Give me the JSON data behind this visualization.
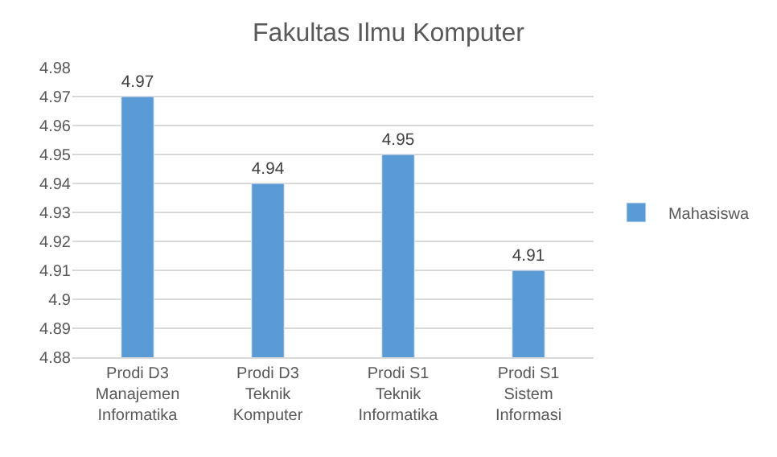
{
  "chart_data": {
    "type": "bar",
    "title": "Fakultas Ilmu Komputer",
    "categories": [
      "Prodi D3 Manajemen Informatika",
      "Prodi D3 Teknik Komputer",
      "Prodi S1 Teknik Informatika",
      "Prodi S1 Sistem Informasi"
    ],
    "series": [
      {
        "name": "Mahasiswa",
        "color": "#5b9bd5",
        "values": [
          4.97,
          4.94,
          4.95,
          4.91
        ]
      }
    ],
    "ylim": [
      4.88,
      4.98
    ],
    "yticks": [
      4.88,
      4.89,
      4.9,
      4.91,
      4.92,
      4.93,
      4.94,
      4.95,
      4.96,
      4.97,
      4.98
    ],
    "grid": "y",
    "legend": "right",
    "data_labels": true
  }
}
